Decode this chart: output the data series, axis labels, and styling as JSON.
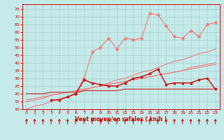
{
  "xlabel": "Vent moyen/en rafales ( kn/h )",
  "bg_color": "#c5eaea",
  "grid_color": "#acd4d4",
  "xlim": [
    -0.5,
    23.5
  ],
  "ylim": [
    10,
    78
  ],
  "yticks": [
    10,
    15,
    20,
    25,
    30,
    35,
    40,
    45,
    50,
    55,
    60,
    65,
    70,
    75
  ],
  "xticks": [
    0,
    1,
    2,
    3,
    4,
    5,
    6,
    7,
    8,
    9,
    10,
    11,
    12,
    13,
    14,
    15,
    16,
    17,
    18,
    19,
    20,
    21,
    22,
    23
  ],
  "x": [
    0,
    1,
    2,
    3,
    4,
    5,
    6,
    7,
    8,
    9,
    10,
    11,
    12,
    13,
    14,
    15,
    16,
    17,
    18,
    19,
    20,
    21,
    22,
    23
  ],
  "line_diag1_y": [
    10,
    12,
    13,
    15,
    17,
    18,
    20,
    22,
    24,
    25,
    27,
    29,
    30,
    32,
    34,
    35,
    37,
    39,
    41,
    42,
    44,
    46,
    47,
    49
  ],
  "line_diag2_y": [
    15,
    16,
    17,
    19,
    20,
    21,
    22,
    23,
    24,
    25,
    26,
    27,
    28,
    29,
    30,
    31,
    32,
    33,
    34,
    35,
    37,
    38,
    39,
    40
  ],
  "line_diag3_y": [
    16,
    17,
    18,
    19,
    20,
    21,
    22,
    23,
    24,
    25,
    26,
    27,
    28,
    29,
    30,
    31,
    32,
    33,
    34,
    35,
    36,
    37,
    38,
    39
  ],
  "line_flat_y": [
    20,
    20,
    20,
    21,
    21,
    21,
    21,
    22,
    22,
    22,
    22,
    22,
    23,
    23,
    23,
    23,
    23,
    23,
    23,
    23,
    23,
    23,
    23,
    23
  ],
  "line_red_y": [
    null,
    null,
    null,
    16,
    16,
    18,
    20,
    29,
    27,
    26,
    25,
    25,
    27,
    30,
    31,
    33,
    36,
    26,
    27,
    27,
    27,
    29,
    30,
    23
  ],
  "line_pink_y": [
    null,
    null,
    null,
    null,
    null,
    null,
    20,
    30,
    47,
    50,
    56,
    49,
    56,
    55,
    56,
    72,
    71,
    64,
    57,
    56,
    61,
    57,
    65,
    66
  ],
  "color_diag1": "#f08080",
  "color_diag2": "#f08080",
  "color_diag3": "#f08080",
  "color_flat": "#cc4444",
  "color_red": "#cc0000",
  "color_pink": "#f08080",
  "tick_color": "#cc0000",
  "label_color": "#cc0000",
  "arrow_color": "#cc0000"
}
